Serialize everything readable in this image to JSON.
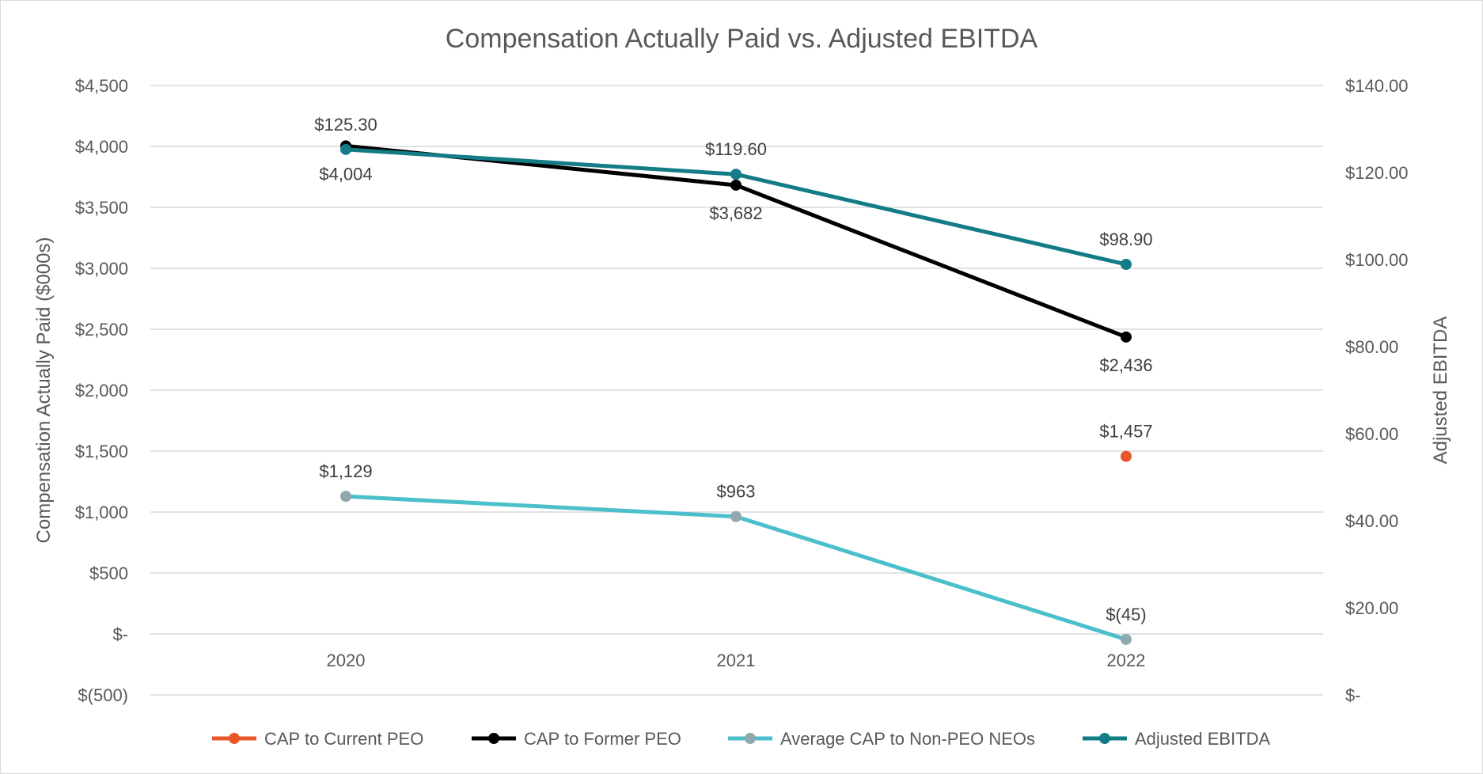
{
  "chart_data": {
    "type": "line",
    "title": "Compensation Actually Paid vs. Adjusted EBITDA",
    "ylabel": "Compensation Actually Paid ($000s)",
    "y2label": "Adjusted EBITDA",
    "categories": [
      "2020",
      "2021",
      "2022"
    ],
    "ylim": [
      -500,
      4500
    ],
    "y2lim": [
      0,
      140
    ],
    "y_ticks": [
      {
        "value": 4500,
        "label": "$4,500"
      },
      {
        "value": 4000,
        "label": "$4,000"
      },
      {
        "value": 3500,
        "label": "$3,500"
      },
      {
        "value": 3000,
        "label": "$3,000"
      },
      {
        "value": 2500,
        "label": "$2,500"
      },
      {
        "value": 2000,
        "label": "$2,000"
      },
      {
        "value": 1500,
        "label": "$1,500"
      },
      {
        "value": 1000,
        "label": "$1,000"
      },
      {
        "value": 500,
        "label": "$500"
      },
      {
        "value": 0,
        "label": "$-"
      },
      {
        "value": -500,
        "label": "$(500)"
      }
    ],
    "y2_ticks": [
      {
        "value": 140,
        "label": "$140.00"
      },
      {
        "value": 120,
        "label": "$120.00"
      },
      {
        "value": 100,
        "label": "$100.00"
      },
      {
        "value": 80,
        "label": "$80.00"
      },
      {
        "value": 60,
        "label": "$60.00"
      },
      {
        "value": 40,
        "label": "$40.00"
      },
      {
        "value": 20,
        "label": "$20.00"
      },
      {
        "value": 0,
        "label": "$-"
      }
    ],
    "series": [
      {
        "name": "CAP to Current PEO",
        "axis": "left",
        "color": "#e8572a",
        "values": [
          null,
          null,
          1457
        ],
        "labels": [
          "",
          "",
          "$1,457"
        ],
        "label_pos": "above"
      },
      {
        "name": "CAP to Former PEO",
        "axis": "left",
        "color": "#000000",
        "values": [
          4004,
          3682,
          2436
        ],
        "labels": [
          "$4,004",
          "$3,682",
          "$2,436"
        ],
        "label_pos": "below"
      },
      {
        "name": "Average CAP to Non-PEO NEOs",
        "axis": "left",
        "color": "#4bbfcb",
        "marker_color": "#8fa9ae",
        "values": [
          1129,
          963,
          -45
        ],
        "labels": [
          "$1,129",
          "$963",
          "$(45)"
        ],
        "label_pos": "above"
      },
      {
        "name": "Adjusted EBITDA",
        "axis": "right",
        "color": "#137c86",
        "values": [
          125.3,
          119.6,
          98.9
        ],
        "labels": [
          "$125.30",
          "$119.60",
          "$98.90"
        ],
        "label_pos": "above"
      }
    ],
    "legend_position": "bottom",
    "grid": true
  }
}
